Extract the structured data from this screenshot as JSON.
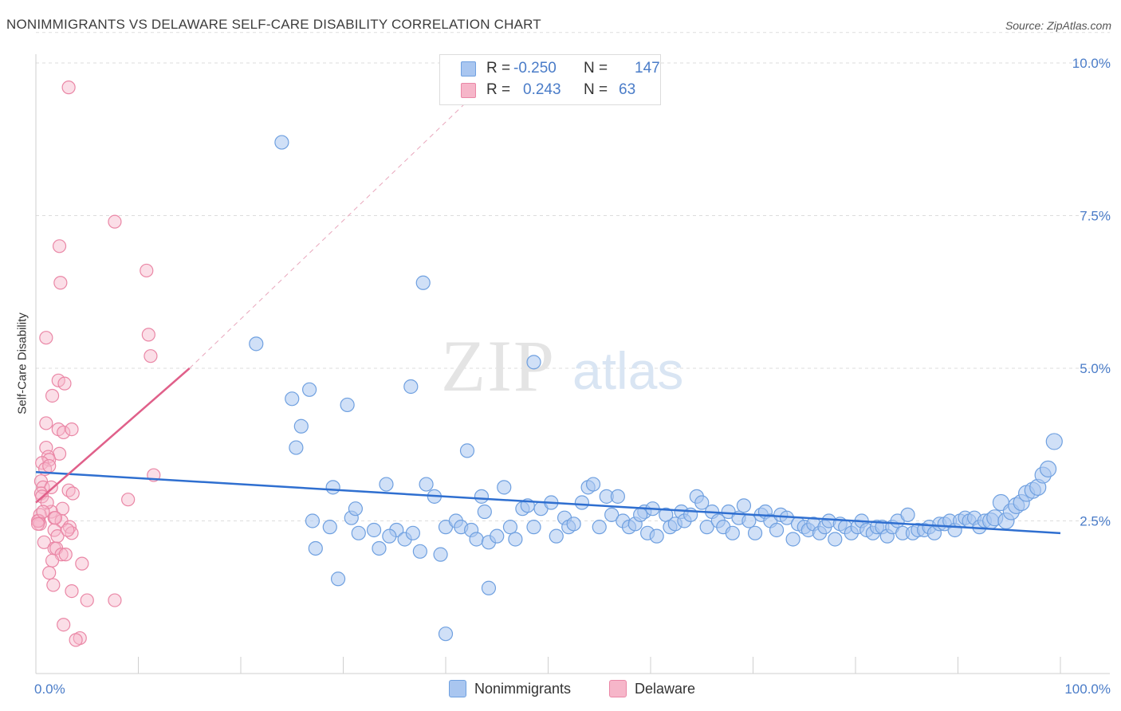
{
  "header": {
    "title": "NONIMMIGRANTS VS DELAWARE SELF-CARE DISABILITY CORRELATION CHART",
    "source": "Source: ZipAtlas.com"
  },
  "watermark": {
    "zip": "ZIP",
    "atlas": "atlas"
  },
  "stats": {
    "r_label": "R =",
    "n_label": "N =",
    "rows": [
      {
        "r": "-0.250",
        "n": "147",
        "color": "#a9c6f0"
      },
      {
        "r": "0.243",
        "n": "63",
        "color": "#f6b6c9"
      }
    ]
  },
  "legend": {
    "items": [
      {
        "label": "Nonimmigrants",
        "color": "#a9c6f0"
      },
      {
        "label": "Delaware",
        "color": "#f6b6c9"
      }
    ]
  },
  "chart_data": {
    "type": "scatter",
    "title": "NONIMMIGRANTS VS DELAWARE SELF-CARE DISABILITY CORRELATION CHART",
    "xlabel": "",
    "ylabel": "Self-Care Disability",
    "xlim": [
      0,
      100
    ],
    "ylim": [
      0,
      10.5
    ],
    "x_tick_labels": [
      "0.0%",
      "100.0%"
    ],
    "y_ticks": [
      2.5,
      5.0,
      7.5,
      10.0
    ],
    "y_tick_labels": [
      "2.5%",
      "5.0%",
      "7.5%",
      "10.0%"
    ],
    "grid": "horizontal dashed",
    "colors": {
      "blue": "#6fa0e0",
      "blue_fill": "#a9c6f0",
      "blue_line": "#2f6fd0",
      "pink": "#ea87a6",
      "pink_fill": "#f6b6c9",
      "pink_line": "#e0608a"
    },
    "series": [
      {
        "name": "Nonimmigrants",
        "regression": {
          "x": [
            0,
            100
          ],
          "y": [
            3.3,
            2.3
          ]
        },
        "points": [
          [
            24.0,
            8.7
          ],
          [
            37.8,
            6.4
          ],
          [
            21.5,
            5.4
          ],
          [
            48.6,
            5.1
          ],
          [
            25.0,
            4.5
          ],
          [
            26.7,
            4.65
          ],
          [
            30.4,
            4.4
          ],
          [
            36.6,
            4.7
          ],
          [
            25.9,
            4.05
          ],
          [
            25.4,
            3.7
          ],
          [
            42.1,
            3.65
          ],
          [
            29.0,
            3.05
          ],
          [
            34.2,
            3.1
          ],
          [
            38.1,
            3.1
          ],
          [
            38.9,
            2.9
          ],
          [
            43.5,
            2.9
          ],
          [
            45.7,
            3.05
          ],
          [
            27.0,
            2.5
          ],
          [
            30.8,
            2.55
          ],
          [
            31.2,
            2.7
          ],
          [
            28.7,
            2.4
          ],
          [
            33.0,
            2.35
          ],
          [
            35.2,
            2.35
          ],
          [
            36.0,
            2.2
          ],
          [
            34.5,
            2.25
          ],
          [
            37.5,
            2.0
          ],
          [
            33.5,
            2.05
          ],
          [
            27.3,
            2.05
          ],
          [
            29.5,
            1.55
          ],
          [
            39.5,
            1.95
          ],
          [
            40.0,
            2.4
          ],
          [
            41.0,
            2.5
          ],
          [
            41.5,
            2.4
          ],
          [
            42.5,
            2.35
          ],
          [
            43.0,
            2.2
          ],
          [
            43.8,
            2.65
          ],
          [
            44.2,
            2.15
          ],
          [
            45.0,
            2.25
          ],
          [
            46.3,
            2.4
          ],
          [
            46.8,
            2.2
          ],
          [
            47.5,
            2.7
          ],
          [
            48.0,
            2.75
          ],
          [
            48.6,
            2.4
          ],
          [
            49.3,
            2.7
          ],
          [
            50.3,
            2.8
          ],
          [
            50.8,
            2.25
          ],
          [
            51.6,
            2.55
          ],
          [
            52.0,
            2.4
          ],
          [
            52.5,
            2.45
          ],
          [
            53.3,
            2.8
          ],
          [
            53.9,
            3.05
          ],
          [
            54.4,
            3.1
          ],
          [
            55.0,
            2.4
          ],
          [
            55.7,
            2.9
          ],
          [
            56.2,
            2.6
          ],
          [
            56.8,
            2.9
          ],
          [
            57.3,
            2.5
          ],
          [
            57.9,
            2.4
          ],
          [
            58.5,
            2.45
          ],
          [
            59.4,
            2.65
          ],
          [
            59.7,
            2.3
          ],
          [
            60.2,
            2.7
          ],
          [
            60.6,
            2.25
          ],
          [
            61.5,
            2.6
          ],
          [
            61.9,
            2.4
          ],
          [
            62.4,
            2.45
          ],
          [
            63.0,
            2.65
          ],
          [
            63.3,
            2.5
          ],
          [
            63.9,
            2.6
          ],
          [
            64.5,
            2.9
          ],
          [
            65.0,
            2.8
          ],
          [
            65.5,
            2.4
          ],
          [
            66.0,
            2.65
          ],
          [
            66.6,
            2.5
          ],
          [
            67.1,
            2.4
          ],
          [
            67.6,
            2.65
          ],
          [
            68.0,
            2.3
          ],
          [
            68.6,
            2.55
          ],
          [
            69.1,
            2.75
          ],
          [
            69.6,
            2.5
          ],
          [
            70.2,
            2.3
          ],
          [
            70.8,
            2.6
          ],
          [
            71.2,
            2.65
          ],
          [
            71.7,
            2.5
          ],
          [
            72.3,
            2.35
          ],
          [
            72.7,
            2.6
          ],
          [
            73.3,
            2.55
          ],
          [
            73.9,
            2.2
          ],
          [
            74.4,
            2.45
          ],
          [
            75.0,
            2.4
          ],
          [
            75.4,
            2.35
          ],
          [
            75.9,
            2.45
          ],
          [
            76.5,
            2.3
          ],
          [
            77.0,
            2.4
          ],
          [
            77.4,
            2.5
          ],
          [
            78.0,
            2.2
          ],
          [
            78.5,
            2.45
          ],
          [
            79.0,
            2.4
          ],
          [
            79.6,
            2.3
          ],
          [
            80.2,
            2.4
          ],
          [
            80.6,
            2.5
          ],
          [
            81.1,
            2.35
          ],
          [
            81.7,
            2.3
          ],
          [
            82.1,
            2.4
          ],
          [
            82.6,
            2.4
          ],
          [
            83.1,
            2.25
          ],
          [
            83.6,
            2.4
          ],
          [
            84.1,
            2.5
          ],
          [
            84.6,
            2.3
          ],
          [
            85.1,
            2.6
          ],
          [
            85.6,
            2.3
          ],
          [
            86.1,
            2.35
          ],
          [
            86.7,
            2.35
          ],
          [
            87.2,
            2.4
          ],
          [
            87.7,
            2.3
          ],
          [
            88.2,
            2.45
          ],
          [
            88.7,
            2.45
          ],
          [
            89.2,
            2.5
          ],
          [
            89.7,
            2.35
          ],
          [
            90.2,
            2.5
          ],
          [
            90.7,
            2.55
          ],
          [
            91.1,
            2.5
          ],
          [
            91.6,
            2.55
          ],
          [
            92.1,
            2.4
          ],
          [
            92.6,
            2.5
          ],
          [
            93.2,
            2.5
          ],
          [
            93.6,
            2.55
          ],
          [
            94.2,
            2.8
          ],
          [
            94.7,
            2.5
          ],
          [
            95.2,
            2.65
          ],
          [
            95.7,
            2.75
          ],
          [
            96.2,
            2.8
          ],
          [
            96.7,
            2.95
          ],
          [
            97.3,
            3.0
          ],
          [
            97.8,
            3.05
          ],
          [
            98.3,
            3.25
          ],
          [
            98.8,
            3.35
          ],
          [
            99.4,
            3.8
          ],
          [
            44.2,
            1.4
          ],
          [
            40.0,
            0.65
          ],
          [
            31.5,
            2.3
          ],
          [
            36.8,
            2.3
          ],
          [
            59.0,
            2.6
          ]
        ]
      },
      {
        "name": "Delaware",
        "regression": {
          "x": [
            0,
            15
          ],
          "y": [
            2.8,
            5.0
          ],
          "extension": {
            "x": [
              15,
              46
            ],
            "y": [
              5.0,
              10.0
            ]
          }
        },
        "points": [
          [
            3.2,
            9.6
          ],
          [
            7.7,
            7.4
          ],
          [
            2.3,
            7.0
          ],
          [
            10.8,
            6.6
          ],
          [
            2.4,
            6.4
          ],
          [
            1.0,
            5.5
          ],
          [
            11.0,
            5.55
          ],
          [
            11.2,
            5.2
          ],
          [
            2.2,
            4.8
          ],
          [
            2.8,
            4.75
          ],
          [
            1.6,
            4.55
          ],
          [
            1.0,
            4.1
          ],
          [
            2.2,
            4.0
          ],
          [
            2.7,
            3.95
          ],
          [
            3.5,
            4.0
          ],
          [
            1.0,
            3.7
          ],
          [
            2.3,
            3.6
          ],
          [
            1.2,
            3.55
          ],
          [
            1.3,
            3.5
          ],
          [
            0.6,
            3.45
          ],
          [
            0.9,
            3.35
          ],
          [
            11.5,
            3.25
          ],
          [
            0.5,
            3.15
          ],
          [
            0.7,
            3.05
          ],
          [
            1.5,
            3.05
          ],
          [
            3.2,
            3.0
          ],
          [
            0.5,
            2.95
          ],
          [
            0.6,
            2.9
          ],
          [
            3.6,
            2.95
          ],
          [
            9.0,
            2.85
          ],
          [
            2.6,
            2.7
          ],
          [
            1.5,
            2.65
          ],
          [
            0.4,
            2.6
          ],
          [
            1.8,
            2.55
          ],
          [
            0.3,
            2.5
          ],
          [
            0.4,
            2.45
          ],
          [
            2.5,
            2.5
          ],
          [
            3.3,
            2.4
          ],
          [
            1.8,
            2.35
          ],
          [
            3.5,
            2.3
          ],
          [
            0.8,
            2.15
          ],
          [
            1.8,
            2.05
          ],
          [
            2.0,
            2.05
          ],
          [
            2.5,
            1.95
          ],
          [
            1.6,
            1.85
          ],
          [
            4.5,
            1.8
          ],
          [
            1.3,
            1.65
          ],
          [
            1.7,
            1.45
          ],
          [
            3.5,
            1.35
          ],
          [
            5.0,
            1.2
          ],
          [
            7.7,
            1.2
          ],
          [
            2.7,
            0.8
          ],
          [
            4.3,
            0.58
          ],
          [
            3.9,
            0.55
          ],
          [
            0.2,
            2.5
          ],
          [
            2.1,
            2.25
          ],
          [
            1.1,
            2.8
          ],
          [
            0.2,
            2.45
          ],
          [
            1.3,
            3.4
          ],
          [
            3.1,
            2.35
          ],
          [
            2.9,
            1.95
          ],
          [
            0.7,
            2.65
          ],
          [
            1.9,
            2.55
          ]
        ]
      }
    ]
  }
}
